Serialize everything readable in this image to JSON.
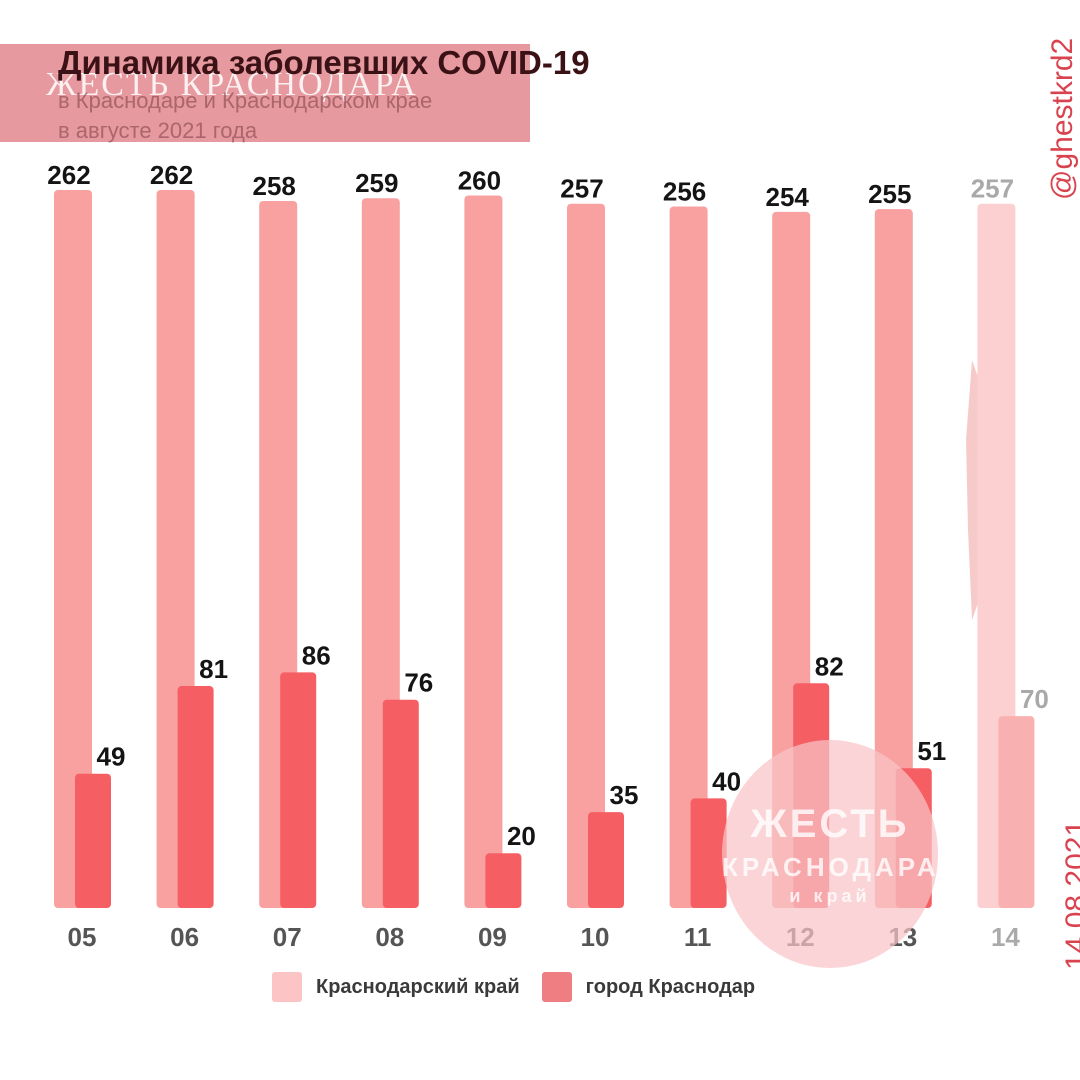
{
  "header": {
    "title": "Динамика заболевших COVID-19",
    "subtitle_line1": "в Краснодаре и Краснодарском крае",
    "subtitle_line2": "в августе 2021 года",
    "watermark": "ЖЕСТЬ КРАСНОДАРА"
  },
  "side": {
    "handle": "@ghestkrd2",
    "date": "14.08.2021"
  },
  "stamp": {
    "line1": "ЖЕСТЬ",
    "line2": "КРАСНОДАРА",
    "line3": "и край"
  },
  "colors": {
    "region": "#f9a0a0",
    "city": "#f55f63",
    "region_faded": "#fcd0d0",
    "city_faded": "#f9b0b0",
    "value_label": "#141414",
    "faded_label": "#a9a9a9",
    "tick_label": "#555555",
    "tick_faded": "#aaaaaa"
  },
  "chart_data": {
    "type": "bar",
    "categories": [
      "05",
      "06",
      "07",
      "08",
      "09",
      "10",
      "11",
      "12",
      "13",
      "14"
    ],
    "series": [
      {
        "name": "Краснодарский край",
        "values": [
          262,
          262,
          258,
          259,
          260,
          257,
          256,
          254,
          255,
          257
        ]
      },
      {
        "name": "город Краснодар",
        "values": [
          49,
          81,
          86,
          76,
          20,
          35,
          40,
          82,
          51,
          70
        ]
      }
    ],
    "faded_categories": [
      "14"
    ],
    "title": "Динамика заболевших COVID-19",
    "xlabel": "",
    "ylabel": "",
    "ylim": [
      0,
      262
    ],
    "grid": false,
    "legend": "bottom"
  }
}
